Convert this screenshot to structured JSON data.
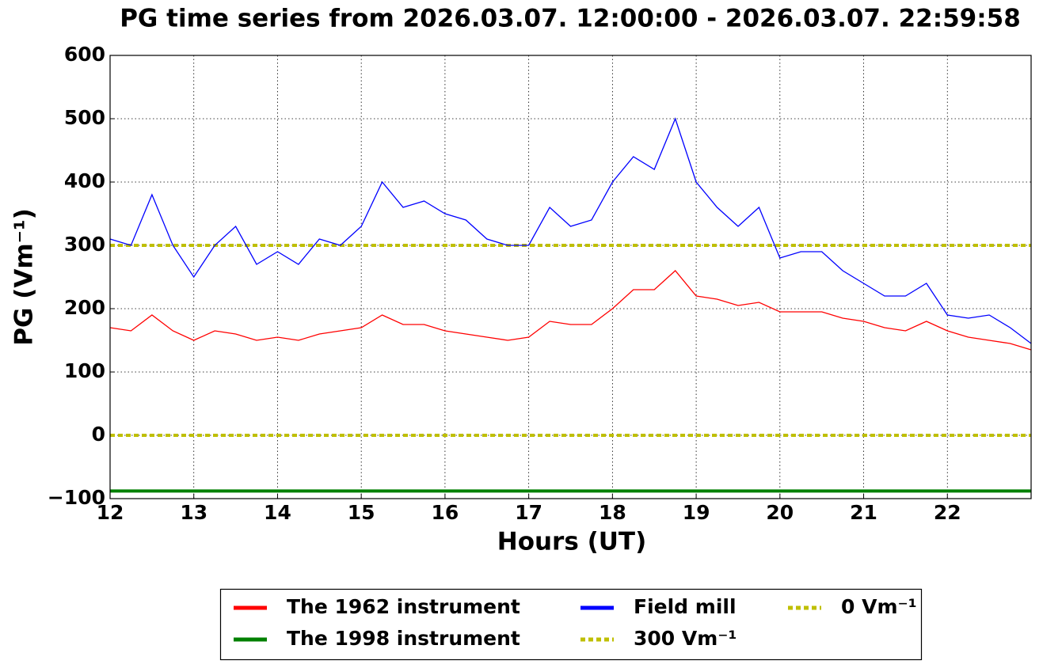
{
  "chart_data": {
    "type": "line",
    "title": "PG time series from 2026.03.07. 12:00:00 - 2026.03.07. 22:59:58",
    "x_label": "Hours (UT)",
    "y_label": "PG (Vm⁻¹)",
    "x": [
      12,
      12.25,
      12.5,
      12.75,
      13,
      13.25,
      13.5,
      13.75,
      14,
      14.25,
      14.5,
      14.75,
      15,
      15.25,
      15.5,
      15.75,
      16,
      16.25,
      16.5,
      16.75,
      17,
      17.25,
      17.5,
      17.75,
      18,
      18.25,
      18.5,
      18.75,
      19,
      19.25,
      19.5,
      19.75,
      20,
      20.25,
      20.5,
      20.75,
      21,
      21.25,
      21.5,
      21.75,
      22,
      22.25,
      22.5,
      22.75,
      23
    ],
    "series": [
      {
        "name": "The 1962 instrument",
        "color": "#ff0000",
        "values": [
          170,
          165,
          190,
          165,
          150,
          165,
          160,
          150,
          155,
          150,
          160,
          165,
          170,
          190,
          175,
          175,
          165,
          160,
          155,
          150,
          155,
          180,
          175,
          175,
          200,
          230,
          230,
          260,
          220,
          215,
          205,
          210,
          195,
          195,
          195,
          185,
          180,
          170,
          165,
          180,
          165,
          155,
          150,
          145,
          135
        ]
      },
      {
        "name": "The 1998 instrument",
        "color": "#008000",
        "values": [
          -88,
          -88,
          -88,
          -88,
          -88,
          -88,
          -88,
          -88,
          -88,
          -88,
          -88,
          -88,
          -88,
          -88,
          -88,
          -88,
          -88,
          -88,
          -88,
          -88,
          -88,
          -88,
          -88,
          -88,
          -88,
          -88,
          -88,
          -88,
          -88,
          -88,
          -88,
          -88,
          -88,
          -88,
          -88,
          -88,
          -88,
          -88,
          -88,
          -88,
          -88,
          -88,
          -88,
          -88,
          -88
        ]
      },
      {
        "name": "Field mill",
        "color": "#0000ff",
        "values": [
          310,
          300,
          380,
          300,
          250,
          300,
          330,
          270,
          290,
          270,
          310,
          300,
          330,
          400,
          360,
          370,
          350,
          340,
          310,
          300,
          300,
          360,
          330,
          340,
          400,
          440,
          420,
          500,
          400,
          360,
          330,
          360,
          280,
          290,
          290,
          260,
          240,
          220,
          220,
          240,
          190,
          185,
          190,
          170,
          145
        ]
      }
    ],
    "hlines": [
      {
        "name": "300 Vm⁻¹",
        "value": 300,
        "color": "#bfbf00"
      },
      {
        "name": "0 Vm⁻¹",
        "value": 0,
        "color": "#bfbf00"
      }
    ],
    "xlim": [
      12,
      23
    ],
    "xticks": [
      12,
      13,
      14,
      15,
      16,
      17,
      18,
      19,
      20,
      21,
      22
    ],
    "ylim": [
      -100,
      600
    ],
    "yticks": [
      {
        "value": -100,
        "label": "−100"
      },
      0,
      100,
      200,
      300,
      400,
      500,
      600
    ],
    "grid": true
  }
}
